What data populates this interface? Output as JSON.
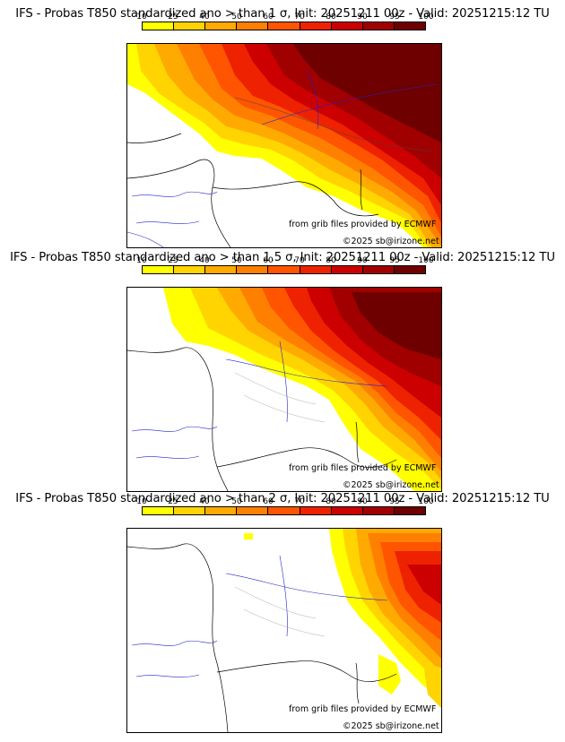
{
  "colorbar": {
    "ticks": [
      "10",
      "25",
      "40",
      "50",
      "60",
      "70",
      "80",
      "90",
      "95",
      "100"
    ],
    "colors": [
      "#ffff00",
      "#ffd400",
      "#ffaa00",
      "#ff8000",
      "#ff5500",
      "#ee2200",
      "#cc0000",
      "#a00000",
      "#6e0000"
    ]
  },
  "panels": [
    {
      "title": "IFS - Probas T850  standardized ano > than 1 σ, Init: 20251211 00z - Valid: 20251215:12 TU",
      "credit_source": "from grib files provided by ECMWF",
      "credit_copyright": "©2025 sb@irizone.net"
    },
    {
      "title": "IFS - Probas T850  standardized ano > than 1.5 σ, Init: 20251211 00z - Valid: 20251215:12 TU",
      "credit_source": "from grib files provided by ECMWF",
      "credit_copyright": "©2025 sb@irizone.net"
    },
    {
      "title": "IFS - Probas T850  standardized ano > than 2 σ, Init: 20251211 00z - Valid: 20251215:12 TU",
      "credit_source": "from grib files provided by ECMWF",
      "credit_copyright": "©2025 sb@irizone.net"
    }
  ]
}
